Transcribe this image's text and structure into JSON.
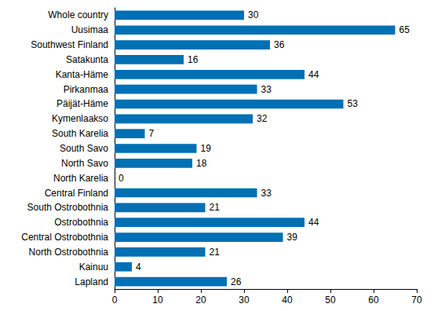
{
  "chart_data": {
    "type": "bar",
    "orientation": "horizontal",
    "categories": [
      "Whole country",
      "Uusimaa",
      "Southwest Finland",
      "Satakunta",
      "Kanta-Häme",
      "Pirkanmaa",
      "Päijät-Häme",
      "Kymenlaakso",
      "South Karelia",
      "South Savo",
      "North Savo",
      "North Karelia",
      "Central Finland",
      "South Ostrobothnia",
      "Ostrobothnia",
      "Central Ostrobothnia",
      "North Ostrobothnia",
      "Kainuu",
      "Lapland"
    ],
    "values": [
      30,
      65,
      36,
      16,
      44,
      33,
      53,
      32,
      7,
      19,
      18,
      0,
      33,
      21,
      44,
      39,
      21,
      4,
      26
    ],
    "color": "#0070b4",
    "xlim": [
      0,
      70
    ],
    "xticks": [
      0,
      10,
      20,
      30,
      40,
      50,
      60,
      70
    ],
    "grid": false,
    "data_labels": true
  }
}
